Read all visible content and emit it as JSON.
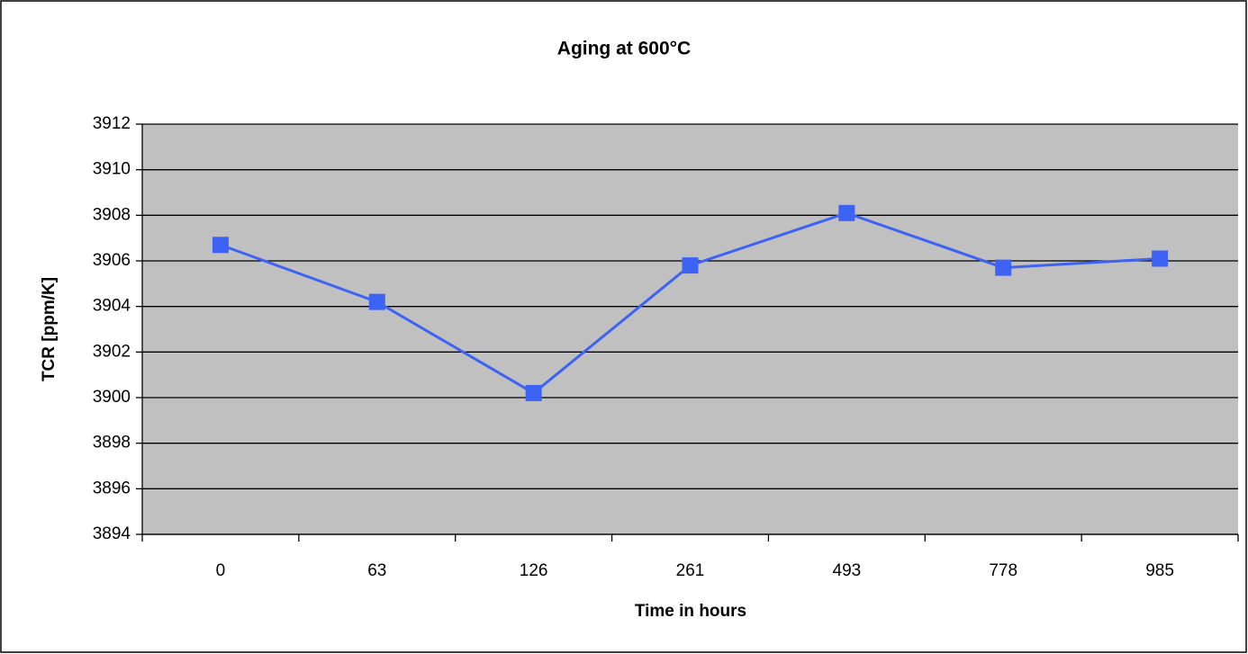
{
  "chart_data": {
    "type": "line",
    "title": "Aging at 600°C",
    "x_label": "Time in hours",
    "y_label": "TCR [ppm/K]",
    "categories": [
      "0",
      "63",
      "126",
      "261",
      "493",
      "778",
      "985"
    ],
    "series": [
      {
        "name": "TCR",
        "color": "#3d63f5",
        "marker": "square",
        "values": [
          3906.7,
          3904.2,
          3900.2,
          3905.8,
          3908.1,
          3905.7,
          3906.1
        ]
      }
    ],
    "ylim": [
      3894,
      3912
    ],
    "yticks": [
      3894,
      3896,
      3898,
      3900,
      3902,
      3904,
      3906,
      3908,
      3910,
      3912
    ],
    "grid": true,
    "legend": false
  }
}
